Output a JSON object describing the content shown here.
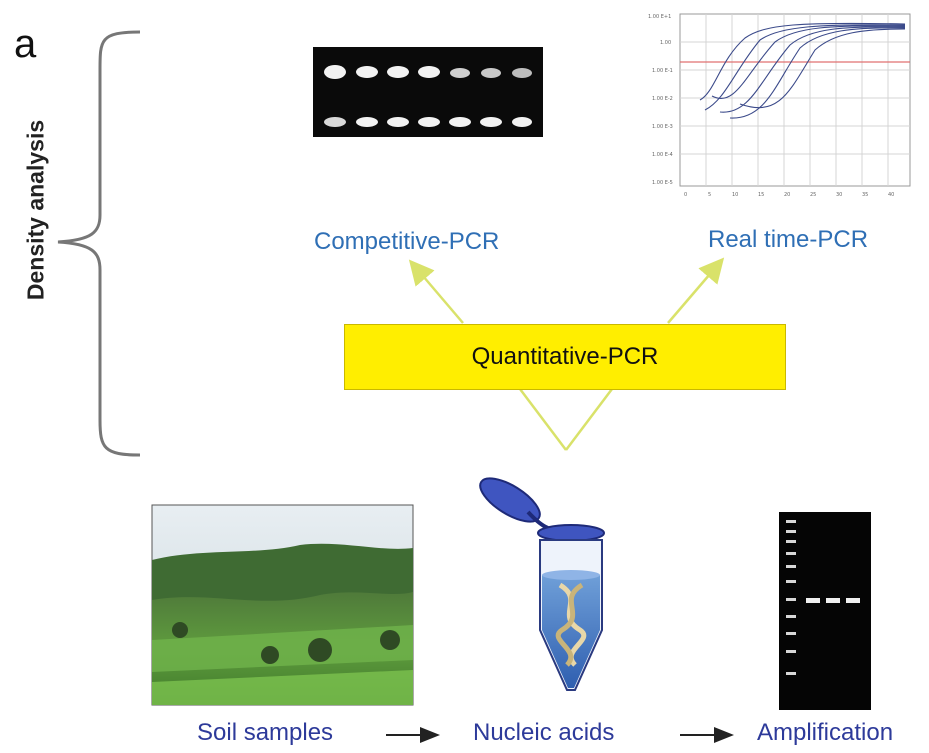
{
  "panel_letter": "a",
  "side_label": "Density analysis",
  "top_labels": {
    "competitive": "Competitive-PCR",
    "realtime": "Real time-PCR"
  },
  "center_box": "Quantitative-PCR",
  "bottom_labels": {
    "soil": "Soil samples",
    "nucleic": "Nucleic acids",
    "amplification": "Amplification"
  },
  "colors": {
    "box_fill": "#ffee00",
    "arrow_yellow": "#d9e26a",
    "label_blue": "#2f6fb5",
    "label_dark_blue": "#2d3a9a"
  }
}
